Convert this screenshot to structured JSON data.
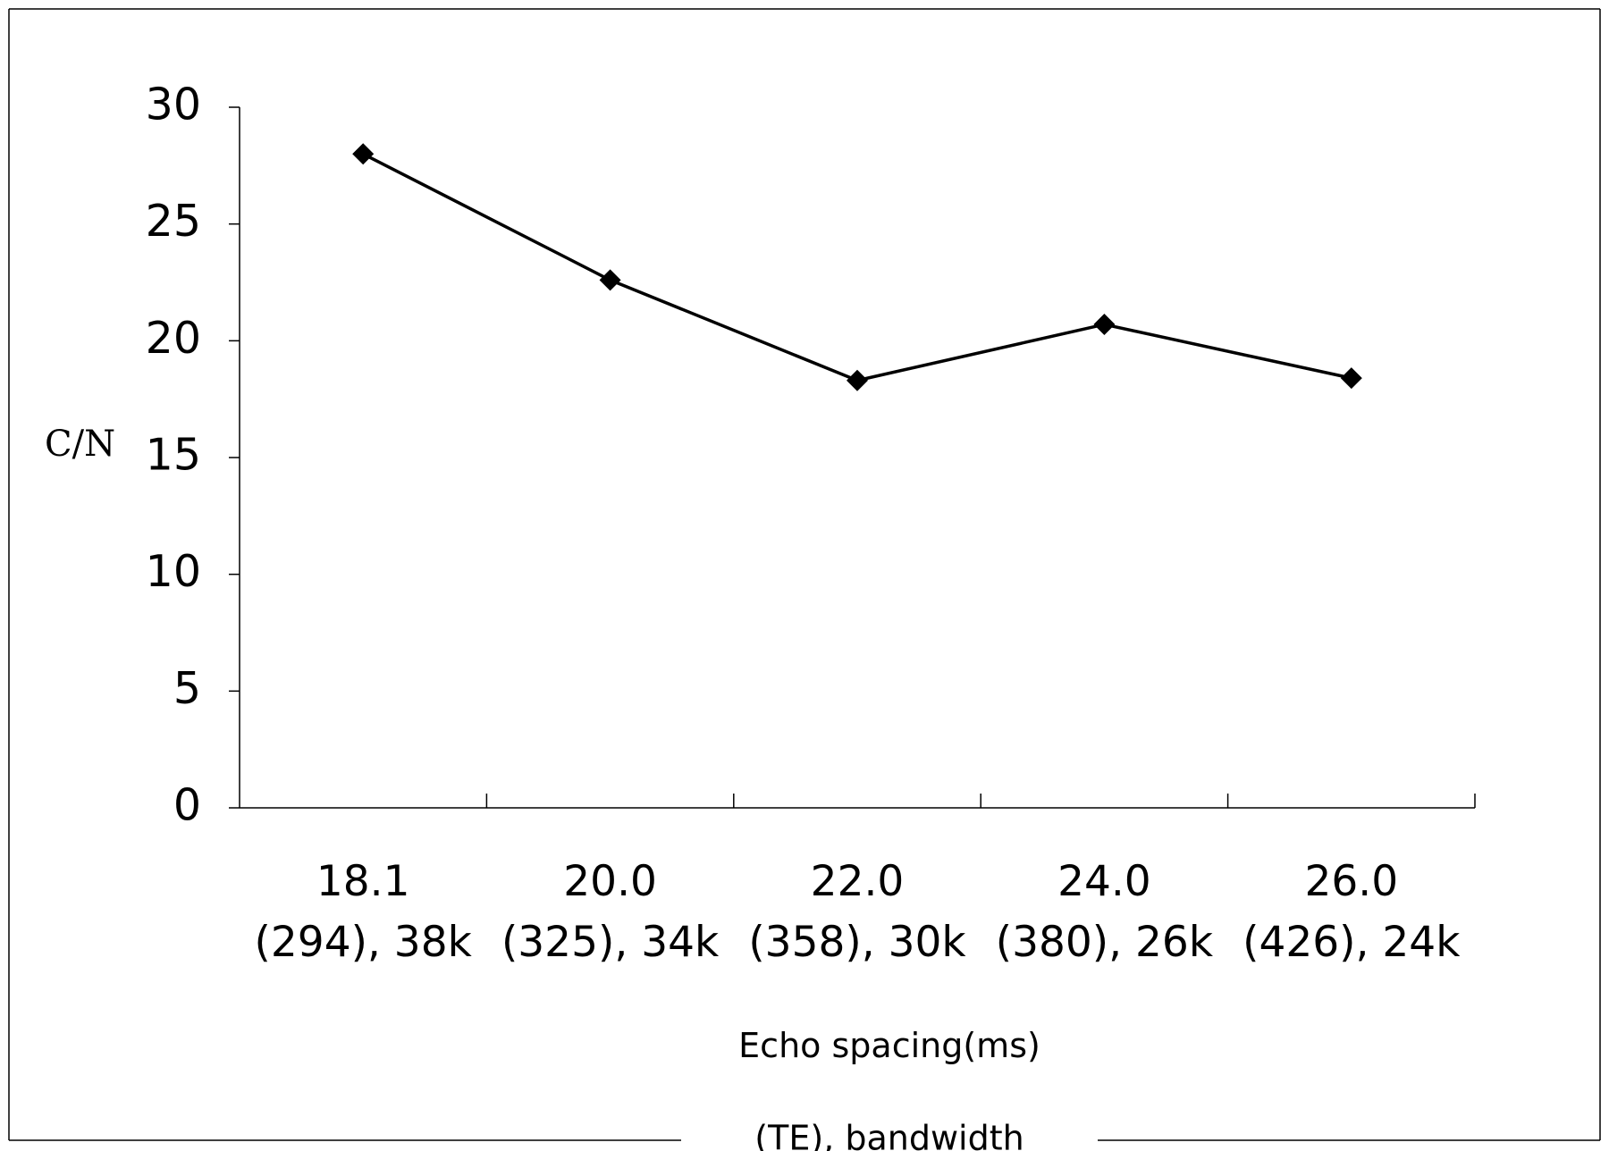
{
  "chart_data": {
    "type": "line",
    "categories": [
      {
        "line1": "18.1",
        "line2": "(294), 38k"
      },
      {
        "line1": "20.0",
        "line2": "(325), 34k"
      },
      {
        "line1": "22.0",
        "line2": "(358), 30k"
      },
      {
        "line1": "24.0",
        "line2": "(380), 26k"
      },
      {
        "line1": "26.0",
        "line2": "(426), 24k"
      }
    ],
    "series": [
      {
        "values": [
          28.0,
          22.6,
          18.3,
          20.7,
          18.4
        ],
        "marker": "diamond",
        "color": "#000000"
      }
    ],
    "ylabel": "C/N",
    "xlabel_line1": "Echo spacing(ms)",
    "xlabel_line2": "(TE), bandwidth",
    "ylim": [
      0,
      30
    ],
    "yticks": [
      "0",
      "5",
      "10",
      "15",
      "20",
      "25",
      "30"
    ],
    "grid": false,
    "legend": "none"
  }
}
